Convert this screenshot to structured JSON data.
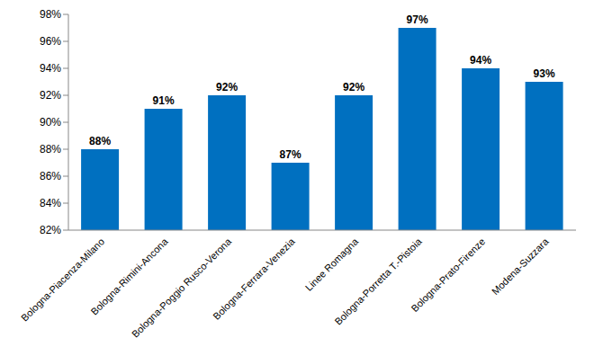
{
  "chart_data": {
    "type": "bar",
    "categories": [
      "Bologna-Piacenza-Milano",
      "Bologna-Rimini-Ancona",
      "Bologna-Poggio Rusco-Verona",
      "Bologna-Ferrara-Venezia",
      "Linee Romagna",
      "Bologna-Porretta T.-Pistoia",
      "Bologna-Prato-Firenze",
      "Modena-Suzzara"
    ],
    "values": [
      88,
      91,
      92,
      87,
      92,
      97,
      94,
      93
    ],
    "value_labels": [
      "88%",
      "91%",
      "92%",
      "87%",
      "92%",
      "97%",
      "94%",
      "93%"
    ],
    "data_labels": true,
    "color": "#0070c0",
    "ylim": [
      82,
      98
    ],
    "yticks": [
      {
        "value": 82,
        "label": "82%"
      },
      {
        "value": 84,
        "label": "84%"
      },
      {
        "value": 86,
        "label": "86%"
      },
      {
        "value": 88,
        "label": "88%"
      },
      {
        "value": 90,
        "label": "90%"
      },
      {
        "value": 92,
        "label": "92%"
      },
      {
        "value": 94,
        "label": "94%"
      },
      {
        "value": 96,
        "label": "96%"
      },
      {
        "value": 98,
        "label": "98%"
      }
    ],
    "grid": false
  }
}
